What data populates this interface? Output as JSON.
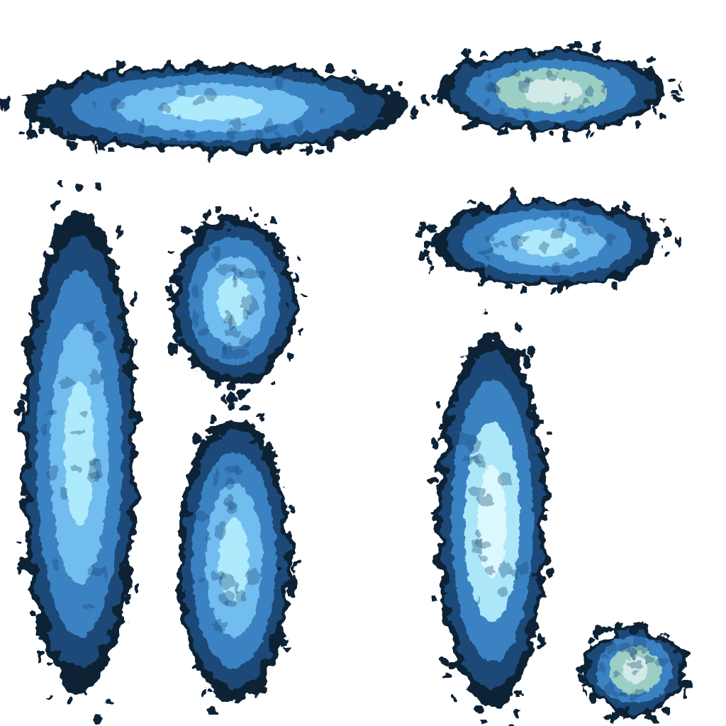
{
  "sheet": {
    "background": "#ffffff",
    "palette": {
      "outline": "#0a2036",
      "deep": "#1b4a78",
      "mid": "#3e86c8",
      "light": "#79c4f4",
      "glow": "#b8f2ff",
      "core": "#e4fcff",
      "pale_green": "#a6d8c6",
      "pale_grey": "#dcefee"
    },
    "sprites": [
      {
        "name": "sprite-splash-horizontal-large",
        "style": "bright"
      },
      {
        "name": "sprite-splash-horizontal-pale",
        "style": "pale"
      },
      {
        "name": "sprite-splash-horizontal-medium",
        "style": "bright"
      },
      {
        "name": "sprite-splash-vertical-tall",
        "style": "bright"
      },
      {
        "name": "sprite-splash-oval-small",
        "style": "bright"
      },
      {
        "name": "sprite-splash-vertical-medium",
        "style": "bright"
      },
      {
        "name": "sprite-splash-vertical-cyan",
        "style": "cyan"
      },
      {
        "name": "sprite-splash-round-small",
        "style": "pale"
      }
    ]
  }
}
